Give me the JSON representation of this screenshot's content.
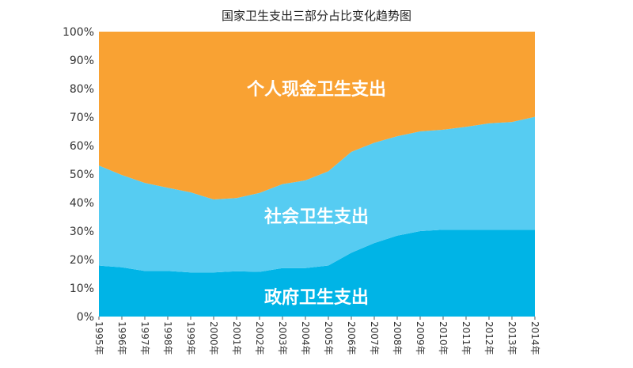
{
  "chart_data": {
    "type": "area",
    "stacked": true,
    "title": "国家卫生支出三部分占比变化趋势图",
    "xlabel": "",
    "ylabel": "",
    "categories": [
      "1995年",
      "1996年",
      "1997年",
      "1998年",
      "1999年",
      "2000年",
      "2001年",
      "2002年",
      "2003年",
      "2004年",
      "2005年",
      "2006年",
      "2007年",
      "2008年",
      "2009年",
      "2010年",
      "2011年",
      "2012年",
      "2013年",
      "2014年"
    ],
    "ylim": [
      0,
      100
    ],
    "yticks": [
      "0%",
      "10%",
      "20%",
      "30%",
      "40%",
      "50%",
      "60%",
      "70%",
      "80%",
      "90%",
      "100%"
    ],
    "grid": false,
    "legend": "none",
    "series": [
      {
        "name": "政府卫生支出",
        "color": "#00b4e6",
        "values": [
          17.9,
          17.3,
          16.0,
          16.0,
          15.5,
          15.5,
          15.9,
          15.7,
          17.0,
          17.0,
          17.9,
          22.4,
          25.8,
          28.4,
          30.0,
          30.5,
          30.5,
          30.5,
          30.5,
          30.5
        ]
      },
      {
        "name": "社会卫生支出",
        "color": "#56ccf2",
        "values": [
          35.1,
          32.4,
          30.9,
          29.2,
          28.1,
          25.6,
          25.7,
          27.7,
          29.5,
          30.8,
          33.1,
          35.4,
          35.2,
          34.9,
          35.0,
          35.1,
          36.1,
          37.3,
          37.8,
          39.6
        ]
      },
      {
        "name": "个人现金卫生支出",
        "color": "#f9a233",
        "values": [
          47.0,
          50.3,
          53.1,
          54.8,
          56.4,
          58.9,
          58.4,
          56.6,
          53.5,
          52.2,
          49.0,
          42.2,
          39.0,
          36.7,
          35.0,
          34.4,
          33.4,
          32.2,
          31.7,
          29.9
        ]
      }
    ],
    "area_labels": [
      "政府卫生支出",
      "社会卫生支出",
      "个人现金卫生支出"
    ]
  }
}
